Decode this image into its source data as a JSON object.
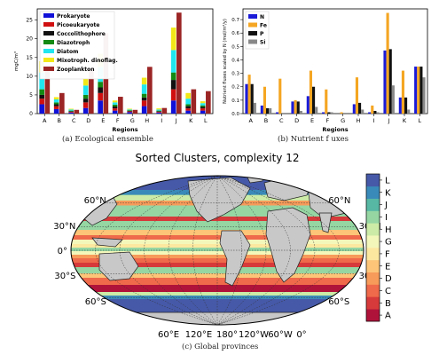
{
  "captions": {
    "a": "(a) Ecological ensemble",
    "b": "(b) Nutrient f uxes",
    "c": "(c) Global provinces"
  },
  "chart_data": [
    {
      "type": "bar",
      "stacked": true,
      "xlabel": "Regions",
      "ylabel": "mgC/m³",
      "ylim": [
        0,
        28
      ],
      "yticks": [
        0,
        5,
        10,
        15,
        20,
        25
      ],
      "categories": [
        "A",
        "B",
        "C",
        "D",
        "E",
        "F",
        "G",
        "H",
        "I",
        "J",
        "K",
        "L"
      ],
      "legend_position": "top-left",
      "groups": [
        {
          "name": "bar1",
          "series": [
            {
              "name": "Prokaryote",
              "color": "#1010d8",
              "values": [
                2.5,
                1.2,
                0.3,
                1.5,
                3.5,
                0.8,
                0.4,
                2.0,
                0.3,
                3.5,
                0.8,
                0.8
              ]
            },
            {
              "name": "Picoeukaryote",
              "color": "#d01010",
              "values": [
                1.5,
                0.8,
                0.2,
                1.5,
                2.0,
                0.6,
                0.2,
                1.5,
                0.2,
                3.0,
                0.6,
                0.6
              ]
            },
            {
              "name": "Coccolithophore",
              "color": "#111111",
              "values": [
                1.0,
                0.5,
                0.1,
                1.0,
                1.5,
                0.5,
                0.1,
                0.8,
                0.1,
                2.5,
                0.6,
                0.4
              ]
            },
            {
              "name": "Diazotroph",
              "color": "#138a13",
              "values": [
                1.5,
                0.5,
                0.2,
                1.0,
                1.5,
                0.5,
                0.2,
                1.0,
                0.2,
                2.0,
                0.5,
                0.4
              ]
            },
            {
              "name": "Diatom",
              "color": "#20e6f0",
              "values": [
                4.5,
                0.8,
                0.3,
                2.5,
                4.0,
                0.6,
                0.2,
                2.5,
                0.3,
                6.0,
                1.5,
                0.6
              ]
            },
            {
              "name": "Mixotroph. dinoflag.",
              "color": "#f2e818",
              "values": [
                3.0,
                0.6,
                0.2,
                2.0,
                3.5,
                0.5,
                0.2,
                1.8,
                0.3,
                6.0,
                1.5,
                0.5
              ]
            }
          ]
        },
        {
          "name": "bar2",
          "series": [
            {
              "name": "Zooplankton",
              "color": "#9b2424",
              "values": [
                12.5,
                5.5,
                1.0,
                12.0,
                21.5,
                4.5,
                1.0,
                12.5,
                1.5,
                27.0,
                6.5,
                6.0
              ]
            }
          ]
        }
      ]
    },
    {
      "type": "bar",
      "grouped": true,
      "xlabel": "Regions",
      "ylabel": "Nutrient fluxes scaled by N (mol/m²/y)",
      "ylim": [
        0,
        0.78
      ],
      "yticks": [
        0.0,
        0.1,
        0.2,
        0.3,
        0.4,
        0.5,
        0.6,
        0.7
      ],
      "categories": [
        "A",
        "B",
        "C",
        "D",
        "E",
        "F",
        "G",
        "H",
        "I",
        "J",
        "K",
        "L"
      ],
      "legend_position": "top-left",
      "series": [
        {
          "name": "N",
          "color": "#1a1ad8",
          "values": [
            0.22,
            0.06,
            0.01,
            0.09,
            0.13,
            0.01,
            0.0,
            0.07,
            0.01,
            0.47,
            0.12,
            0.35
          ]
        },
        {
          "name": "Fe",
          "color": "#f5a623",
          "values": [
            0.29,
            0.2,
            0.26,
            0.1,
            0.32,
            0.18,
            0.01,
            0.27,
            0.06,
            0.75,
            0.32,
            0.35
          ]
        },
        {
          "name": "P",
          "color": "#111111",
          "values": [
            0.22,
            0.04,
            0.0,
            0.09,
            0.2,
            0.01,
            0.0,
            0.08,
            0.02,
            0.48,
            0.12,
            0.35
          ]
        },
        {
          "name": "Si",
          "color": "#888888",
          "values": [
            0.08,
            0.04,
            0.0,
            0.02,
            0.05,
            0.01,
            0.0,
            0.03,
            0.01,
            0.21,
            0.03,
            0.27
          ]
        }
      ]
    },
    {
      "type": "map",
      "title": "Sorted Clusters, complexity 12",
      "projection": "Robinson",
      "lat_labels_left": [
        "60°N",
        "30°N",
        "0°",
        "30°S",
        "60°S"
      ],
      "lat_labels_right": [
        "60°N",
        "30°N",
        "0°",
        "30°S",
        "60°S"
      ],
      "lon_labels_bottom": [
        "60°E",
        "120°E",
        "180°",
        "120°W",
        "60°W",
        "0°"
      ],
      "colorbar_labels": [
        "A",
        "B",
        "C",
        "D",
        "E",
        "F",
        "G",
        "H",
        "I",
        "J",
        "K",
        "L"
      ],
      "colorbar_colors": [
        "#b0133a",
        "#d73a3a",
        "#ef6a4a",
        "#f79b5a",
        "#fcc578",
        "#fde8a0",
        "#f4f7ba",
        "#cceba6",
        "#95d6a3",
        "#57b8a4",
        "#3a8ab9",
        "#4659a8"
      ],
      "land_color": "#c8c8c8"
    }
  ]
}
